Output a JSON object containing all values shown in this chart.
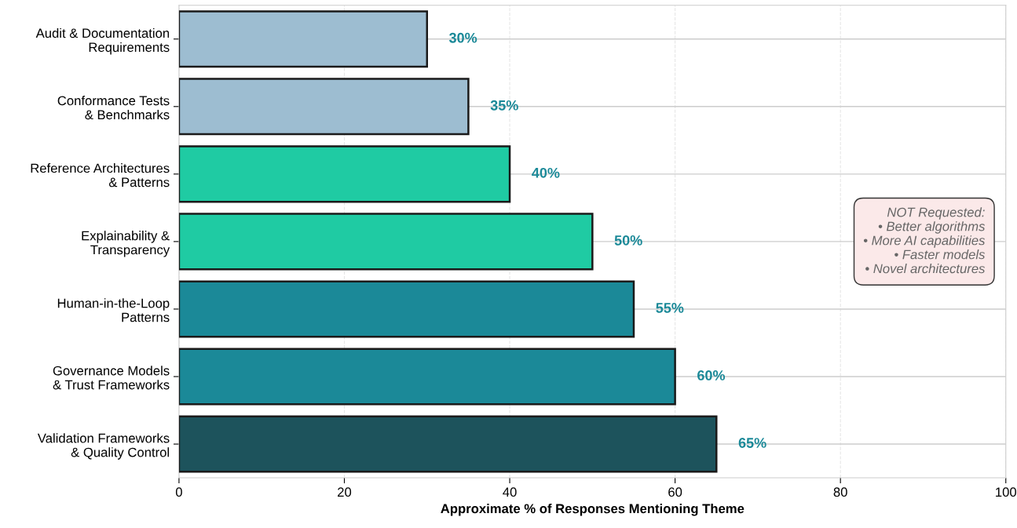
{
  "chart_data": {
    "type": "bar",
    "orientation": "horizontal",
    "xlabel": "Approximate % of Responses Mentioning Theme",
    "categories": [
      "Audit & Documentation\nRequirements",
      "Conformance Tests\n& Benchmarks",
      "Reference Architectures\n& Patterns",
      "Explainability &\nTransparency",
      "Human-in-the-Loop\nPatterns",
      "Governance Models\n& Trust Frameworks",
      "Validation Frameworks\n& Quality Control"
    ],
    "values": [
      30,
      35,
      40,
      50,
      55,
      60,
      65
    ],
    "colors": [
      "#9dbdd1",
      "#9dbdd1",
      "#1fcba3",
      "#1fcba3",
      "#1b8998",
      "#1b8998",
      "#1d535c"
    ],
    "value_labels": [
      "30%",
      "35%",
      "40%",
      "50%",
      "55%",
      "60%",
      "65%"
    ],
    "xlim": [
      0,
      100
    ],
    "xticks": [
      0,
      20,
      40,
      60,
      80,
      100
    ],
    "grid": true,
    "legend": false,
    "annotations": [
      "NOT Requested:\n• Better algorithms\n• More AI capabilities\n• Faster models\n• Novel architectures"
    ]
  }
}
